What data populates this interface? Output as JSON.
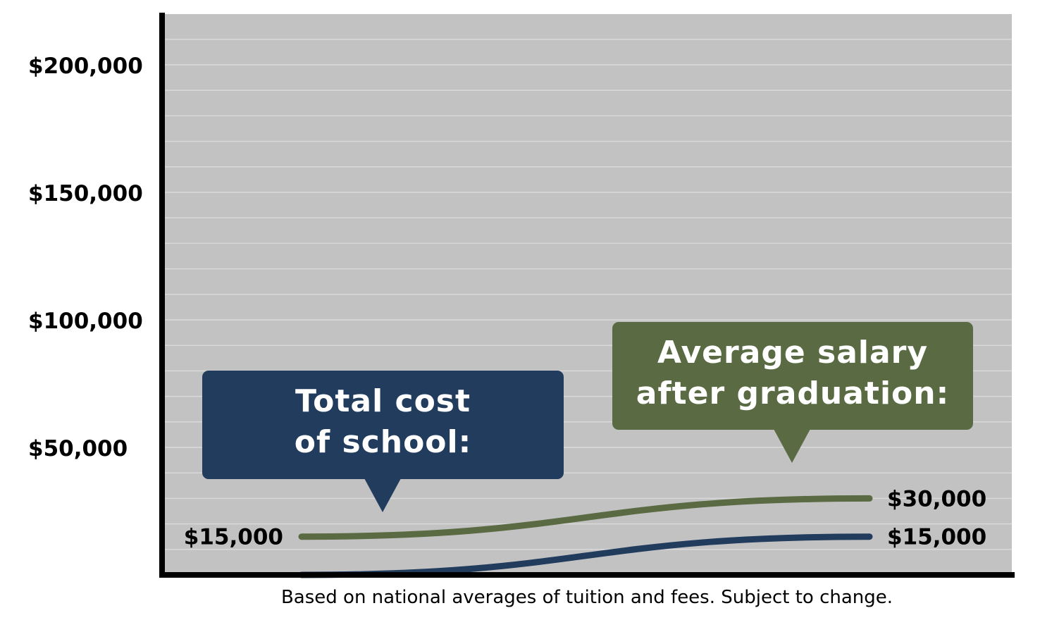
{
  "chart_data": {
    "type": "line",
    "ylim": [
      0,
      220000
    ],
    "y_ticks": [
      {
        "value": 200000,
        "label": "$200,000"
      },
      {
        "value": 150000,
        "label": "$150,000"
      },
      {
        "value": 100000,
        "label": "$100,000"
      },
      {
        "value": 50000,
        "label": "$50,000"
      }
    ],
    "grid": true,
    "series": [
      {
        "key": "salary",
        "color": "#5a6b43",
        "values": [
          15000,
          30000
        ],
        "start_label": "$15,000",
        "end_label": "$30,000"
      },
      {
        "key": "cost",
        "color": "#223c5e",
        "values": [
          0,
          15000
        ],
        "start_label": "",
        "end_label": "$15,000"
      }
    ],
    "callouts": [
      {
        "series": "cost",
        "lines": [
          "Total cost",
          "of school:"
        ],
        "color": "#223c5e"
      },
      {
        "series": "salary",
        "lines": [
          "Average salary",
          "after graduation:"
        ],
        "color": "#5a6b43"
      }
    ],
    "footnote": "Based on national averages of tuition and fees. Subject to change."
  },
  "colors": {
    "plot_bg": "#c2c2c2",
    "grid": "#d9d9d9",
    "axis": "#000000"
  }
}
